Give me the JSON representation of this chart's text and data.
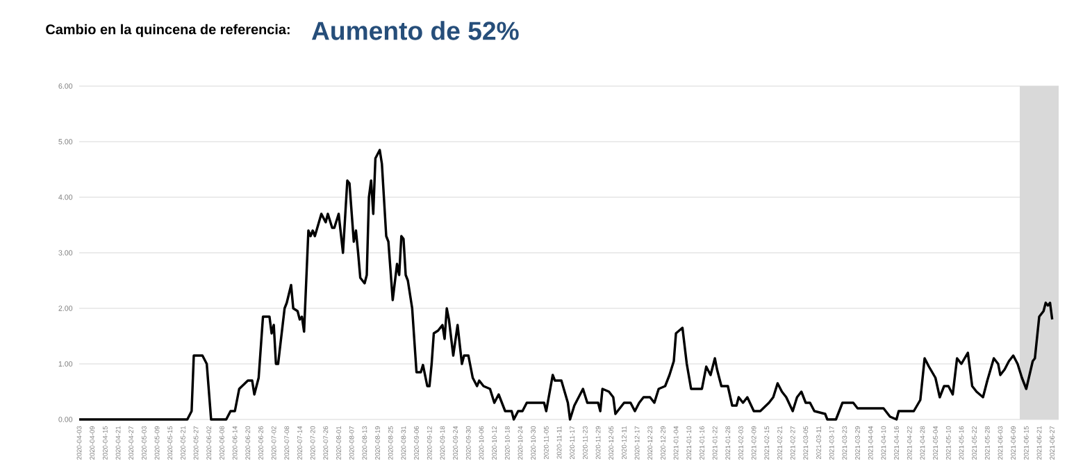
{
  "chart_data": {
    "type": "line",
    "title": "Cambio en la quincena de referencia:",
    "subtitle": "Aumento de 52%",
    "xlim": [
      "2020-04-03",
      "2021-06-30"
    ],
    "ylim": [
      0,
      6
    ],
    "yticks": [
      {
        "value": 0,
        "label": "0.00"
      },
      {
        "value": 1,
        "label": "1.00"
      },
      {
        "value": 2,
        "label": "2.00"
      },
      {
        "value": 3,
        "label": "3.00"
      },
      {
        "value": 4,
        "label": "4.00"
      },
      {
        "value": 5,
        "label": "5.00"
      },
      {
        "value": 6,
        "label": "6.00"
      }
    ],
    "xticks": [
      "2020-04-03",
      "2020-04-09",
      "2020-04-15",
      "2020-04-21",
      "2020-04-27",
      "2020-05-03",
      "2020-05-09",
      "2020-05-15",
      "2020-05-21",
      "2020-05-27",
      "2020-06-02",
      "2020-06-08",
      "2020-06-14",
      "2020-06-20",
      "2020-06-26",
      "2020-07-02",
      "2020-07-08",
      "2020-07-14",
      "2020-07-20",
      "2020-07-26",
      "2020-08-01",
      "2020-08-07",
      "2020-08-13",
      "2020-08-19",
      "2020-08-25",
      "2020-08-31",
      "2020-09-06",
      "2020-09-12",
      "2020-09-18",
      "2020-09-24",
      "2020-09-30",
      "2020-10-06",
      "2020-10-12",
      "2020-10-18",
      "2020-10-24",
      "2020-10-30",
      "2020-11-05",
      "2020-11-11",
      "2020-11-17",
      "2020-11-23",
      "2020-11-29",
      "2020-12-05",
      "2020-12-11",
      "2020-12-17",
      "2020-12-23",
      "2020-12-29",
      "2021-01-04",
      "2021-01-10",
      "2021-01-16",
      "2021-01-22",
      "2021-01-28",
      "2021-02-03",
      "2021-02-09",
      "2021-02-15",
      "2021-02-21",
      "2021-02-27",
      "2021-03-05",
      "2021-03-11",
      "2021-03-17",
      "2021-03-23",
      "2021-03-29",
      "2021-04-04",
      "2021-04-10",
      "2021-04-16",
      "2021-04-22",
      "2021-04-28",
      "2021-05-04",
      "2021-05-10",
      "2021-05-16",
      "2021-05-22",
      "2021-05-28",
      "2021-06-03",
      "2021-06-09",
      "2021-06-15",
      "2021-06-21",
      "2021-06-27"
    ],
    "grid": "y",
    "marker": "none",
    "line_style": "solid",
    "bands": [
      {
        "axis": "x",
        "from": "2021-06-12",
        "to": "2021-06-30",
        "color": "#d9d9d9"
      }
    ],
    "x": [
      "2020-04-03",
      "2020-05-23",
      "2020-05-25",
      "2020-05-26",
      "2020-05-30",
      "2020-06-01",
      "2020-06-03",
      "2020-06-10",
      "2020-06-12",
      "2020-06-14",
      "2020-06-16",
      "2020-06-20",
      "2020-06-22",
      "2020-06-23",
      "2020-06-25",
      "2020-06-27",
      "2020-06-30",
      "2020-07-01",
      "2020-07-02",
      "2020-07-03",
      "2020-07-04",
      "2020-07-07",
      "2020-07-08",
      "2020-07-10",
      "2020-07-11",
      "2020-07-13",
      "2020-07-14",
      "2020-07-15",
      "2020-07-16",
      "2020-07-18",
      "2020-07-19",
      "2020-07-20",
      "2020-07-21",
      "2020-07-24",
      "2020-07-26",
      "2020-07-27",
      "2020-07-29",
      "2020-07-30",
      "2020-08-01",
      "2020-08-03",
      "2020-08-05",
      "2020-08-06",
      "2020-08-08",
      "2020-08-09",
      "2020-08-10",
      "2020-08-11",
      "2020-08-13",
      "2020-08-14",
      "2020-08-15",
      "2020-08-16",
      "2020-08-17",
      "2020-08-18",
      "2020-08-20",
      "2020-08-21",
      "2020-08-23",
      "2020-08-24",
      "2020-08-26",
      "2020-08-28",
      "2020-08-29",
      "2020-08-30",
      "2020-08-31",
      "2020-09-01",
      "2020-09-02",
      "2020-09-04",
      "2020-09-06",
      "2020-09-08",
      "2020-09-09",
      "2020-09-11",
      "2020-09-12",
      "2020-09-13",
      "2020-09-14",
      "2020-09-16",
      "2020-09-18",
      "2020-09-19",
      "2020-09-20",
      "2020-09-21",
      "2020-09-23",
      "2020-09-25",
      "2020-09-27",
      "2020-09-28",
      "2020-09-30",
      "2020-10-02",
      "2020-10-04",
      "2020-10-05",
      "2020-10-07",
      "2020-10-10",
      "2020-10-12",
      "2020-10-14",
      "2020-10-17",
      "2020-10-20",
      "2020-10-21",
      "2020-10-23",
      "2020-10-25",
      "2020-10-27",
      "2020-11-04",
      "2020-11-05",
      "2020-11-08",
      "2020-11-09",
      "2020-11-12",
      "2020-11-15",
      "2020-11-16",
      "2020-11-18",
      "2020-11-20",
      "2020-11-22",
      "2020-11-24",
      "2020-11-29",
      "2020-11-30",
      "2020-12-01",
      "2020-12-04",
      "2020-12-06",
      "2020-12-07",
      "2020-12-09",
      "2020-12-11",
      "2020-12-14",
      "2020-12-16",
      "2020-12-18",
      "2020-12-20",
      "2020-12-23",
      "2020-12-25",
      "2020-12-27",
      "2020-12-30",
      "2021-01-01",
      "2021-01-03",
      "2021-01-04",
      "2021-01-07",
      "2021-01-09",
      "2021-01-11",
      "2021-01-16",
      "2021-01-18",
      "2021-01-20",
      "2021-01-22",
      "2021-01-23",
      "2021-01-25",
      "2021-01-28",
      "2021-01-30",
      "2021-02-01",
      "2021-02-02",
      "2021-02-04",
      "2021-02-06",
      "2021-02-09",
      "2021-02-12",
      "2021-02-16",
      "2021-02-18",
      "2021-02-20",
      "2021-02-22",
      "2021-02-24",
      "2021-02-27",
      "2021-03-01",
      "2021-03-03",
      "2021-03-05",
      "2021-03-07",
      "2021-03-09",
      "2021-03-14",
      "2021-03-15",
      "2021-03-19",
      "2021-03-22",
      "2021-03-27",
      "2021-03-29",
      "2021-04-10",
      "2021-04-13",
      "2021-04-16",
      "2021-04-17",
      "2021-04-24",
      "2021-04-27",
      "2021-04-29",
      "2021-05-01",
      "2021-05-04",
      "2021-05-06",
      "2021-05-08",
      "2021-05-10",
      "2021-05-12",
      "2021-05-14",
      "2021-05-16",
      "2021-05-19",
      "2021-05-21",
      "2021-05-23",
      "2021-05-26",
      "2021-05-28",
      "2021-05-31",
      "2021-06-02",
      "2021-06-03",
      "2021-06-05",
      "2021-06-07",
      "2021-06-09",
      "2021-06-11",
      "2021-06-13",
      "2021-06-15",
      "2021-06-18",
      "2021-06-19",
      "2021-06-21",
      "2021-06-23",
      "2021-06-24",
      "2021-06-25",
      "2021-06-26",
      "2021-06-27"
    ],
    "series": [
      {
        "color": "#000000",
        "values": [
          0,
          0,
          0.15,
          1.15,
          1.15,
          1.0,
          0,
          0,
          0.15,
          0.15,
          0.55,
          0.7,
          0.7,
          0.45,
          0.75,
          1.85,
          1.85,
          1.55,
          1.7,
          1.0,
          1.0,
          2.0,
          2.1,
          2.42,
          2.0,
          1.95,
          1.8,
          1.85,
          1.58,
          3.4,
          3.3,
          3.4,
          3.3,
          3.7,
          3.55,
          3.7,
          3.45,
          3.45,
          3.7,
          3.0,
          4.3,
          4.25,
          3.2,
          3.4,
          3.0,
          2.55,
          2.45,
          2.6,
          4.0,
          4.3,
          3.7,
          4.7,
          4.85,
          4.6,
          3.3,
          3.2,
          2.15,
          2.8,
          2.6,
          3.3,
          3.25,
          2.6,
          2.5,
          2.0,
          0.85,
          0.85,
          0.98,
          0.6,
          0.6,
          1.0,
          1.55,
          1.6,
          1.7,
          1.45,
          2.0,
          1.8,
          1.15,
          1.7,
          1.0,
          1.15,
          1.15,
          0.75,
          0.6,
          0.7,
          0.6,
          0.55,
          0.3,
          0.45,
          0.15,
          0.15,
          0,
          0.15,
          0.15,
          0.3,
          0.3,
          0.15,
          0.8,
          0.7,
          0.7,
          0.3,
          0,
          0.25,
          0.4,
          0.55,
          0.3,
          0.3,
          0.15,
          0.55,
          0.5,
          0.4,
          0.1,
          0.2,
          0.3,
          0.3,
          0.15,
          0.3,
          0.4,
          0.4,
          0.3,
          0.55,
          0.6,
          0.8,
          1.05,
          1.55,
          1.65,
          1.0,
          0.55,
          0.55,
          0.95,
          0.8,
          1.1,
          0.9,
          0.6,
          0.6,
          0.25,
          0.25,
          0.4,
          0.3,
          0.4,
          0.15,
          0.15,
          0.3,
          0.4,
          0.65,
          0.5,
          0.4,
          0.15,
          0.4,
          0.5,
          0.3,
          0.3,
          0.15,
          0.1,
          0,
          0,
          0.3,
          0.3,
          0.2,
          0.2,
          0.05,
          0,
          0.15,
          0.15,
          0.35,
          1.1,
          0.95,
          0.75,
          0.4,
          0.6,
          0.6,
          0.45,
          1.1,
          1.0,
          1.2,
          0.6,
          0.5,
          0.4,
          0.7,
          1.1,
          1.0,
          0.8,
          0.9,
          1.05,
          1.15,
          1.0,
          0.75,
          0.55,
          1.05,
          1.1,
          1.85,
          1.95,
          2.1,
          2.05,
          2.1,
          1.8
        ]
      }
    ]
  }
}
